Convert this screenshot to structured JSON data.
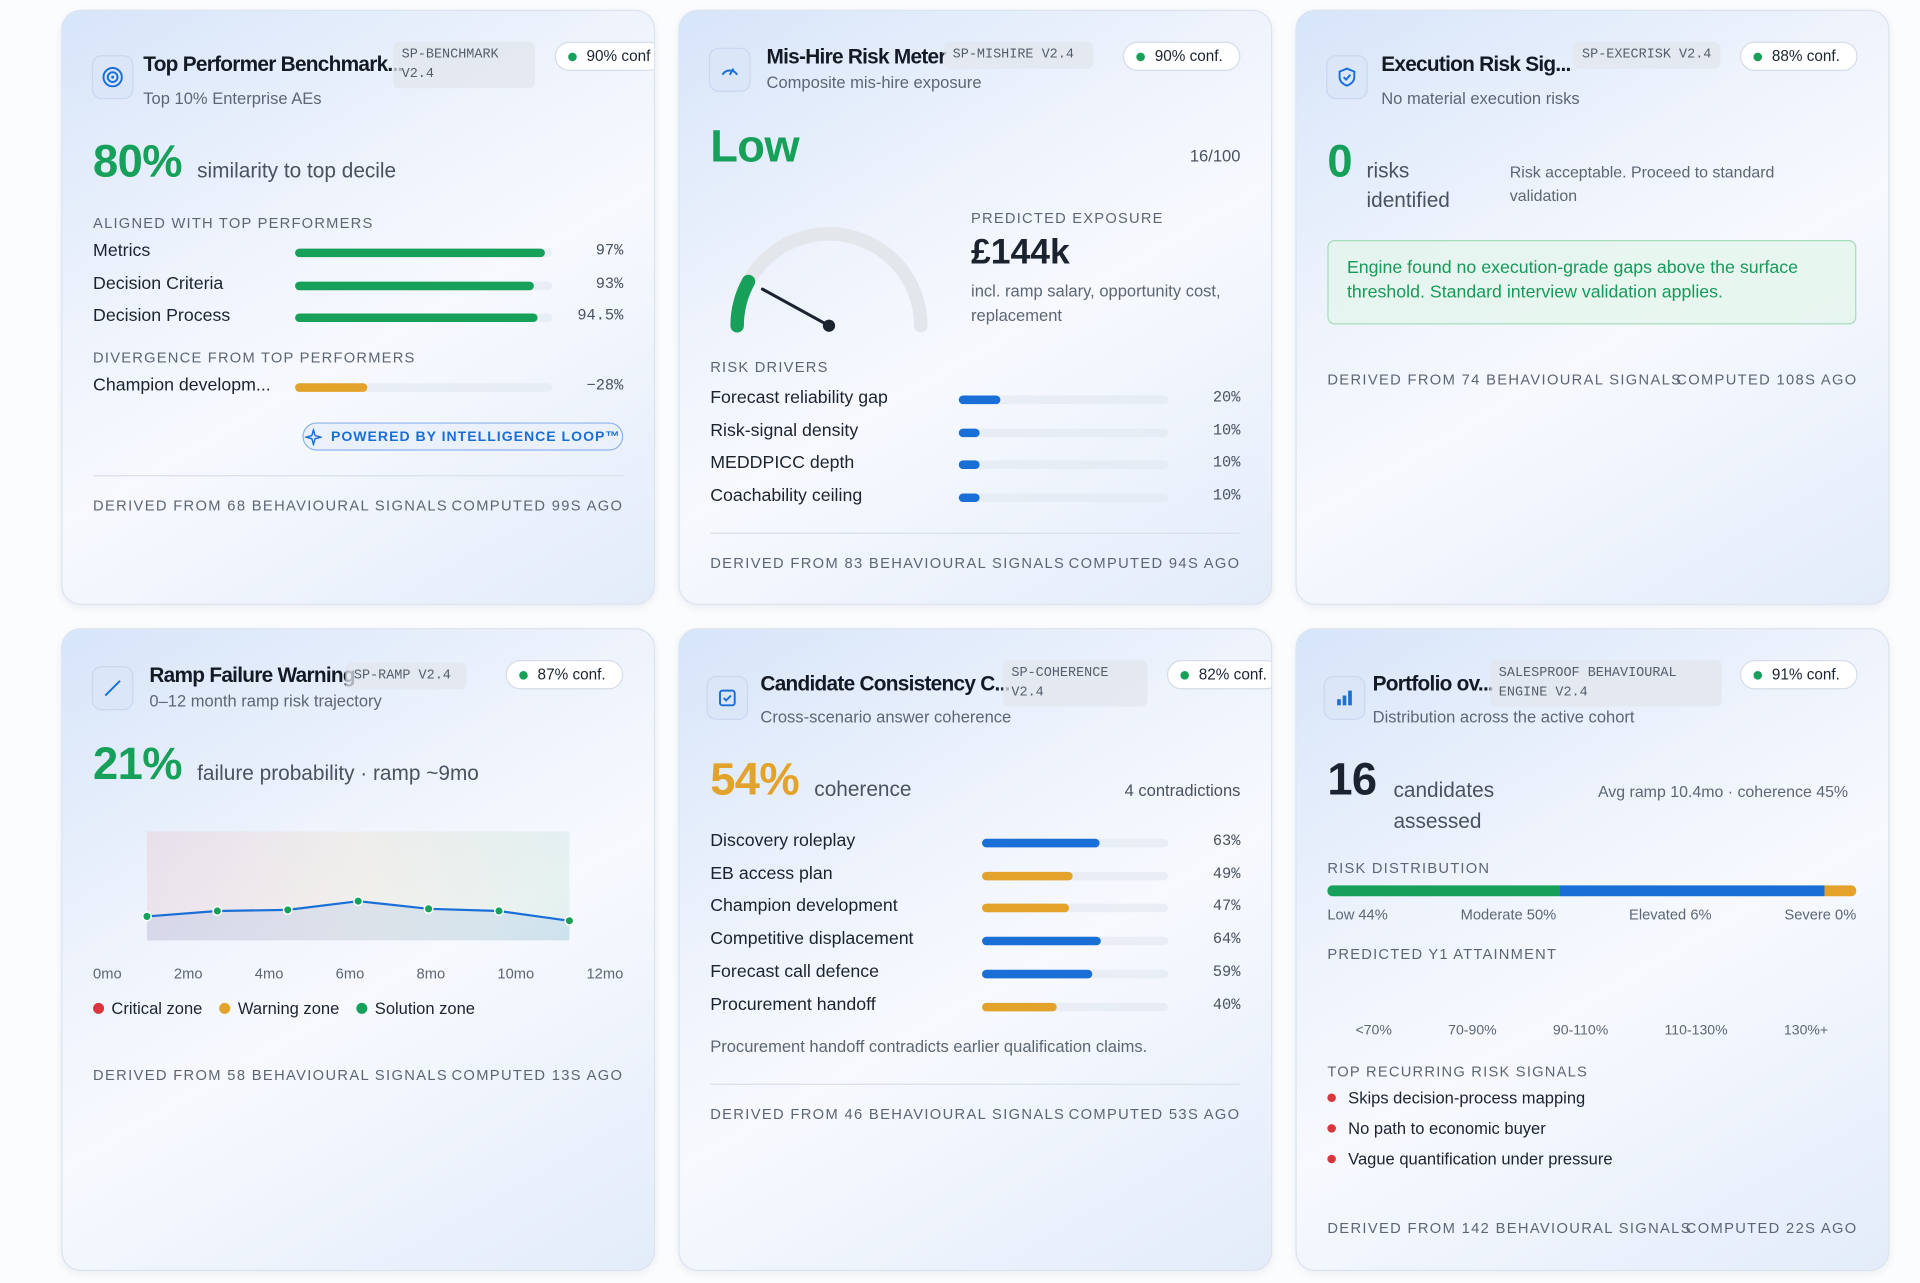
{
  "benchmark": {
    "title": "Top Performer Benchmark...",
    "code": "SP-BENCHMARK V2.4",
    "confidence": "90% conf",
    "subtitle": "Top 10% Enterprise AEs",
    "headline": "80%",
    "headline_text": "similarity to top decile",
    "aligned_heading": "ALIGNED WITH TOP PERFORMERS",
    "aligned": [
      {
        "label": "Metrics",
        "value": 97,
        "value_label": "97%",
        "color": "#16a05a"
      },
      {
        "label": "Decision Criteria",
        "value": 93,
        "value_label": "93%",
        "color": "#16a05a"
      },
      {
        "label": "Decision Process",
        "value": 94.5,
        "value_label": "94.5%",
        "color": "#16a05a"
      }
    ],
    "divergence_heading": "DIVERGENCE FROM TOP PERFORMERS",
    "divergence": [
      {
        "label": "Champion developm...",
        "value": -28,
        "value_label": "−28%",
        "color": "#e3a22a"
      }
    ],
    "badge": "POWERED BY INTELLIGENCE LOOP™",
    "footer_signals": "DERIVED FROM 68 BEHAVIOURAL SIGNALS",
    "footer_computed": "COMPUTED 99S AGO"
  },
  "mishire": {
    "title": "Mis-Hire Risk Meter",
    "code": "SP-MISHIRE V2.4",
    "confidence": "90% conf.",
    "subtitle": "Composite mis-hire exposure",
    "level": "Low",
    "score": 16,
    "score_label": "16/100",
    "exposure_heading": "PREDICTED EXPOSURE",
    "exposure": "£144k",
    "exposure_note": "incl. ramp salary, opportunity cost, replacement",
    "drivers_heading": "RISK DRIVERS",
    "drivers": [
      {
        "label": "Forecast reliability gap",
        "value": 20,
        "value_label": "20%",
        "color": "#1a6fd6"
      },
      {
        "label": "Risk-signal density",
        "value": 10,
        "value_label": "10%",
        "color": "#1a6fd6"
      },
      {
        "label": "MEDDPICC depth",
        "value": 10,
        "value_label": "10%",
        "color": "#1a6fd6"
      },
      {
        "label": "Coachability ceiling",
        "value": 10,
        "value_label": "10%",
        "color": "#1a6fd6"
      }
    ],
    "footer_signals": "DERIVED FROM 83 BEHAVIOURAL SIGNALS",
    "footer_computed": "COMPUTED 94S AGO"
  },
  "execution": {
    "title": "Execution Risk Sig...",
    "code": "SP-EXECRISK V2.4",
    "confidence": "88% conf.",
    "subtitle": "No material execution risks",
    "headline": "0",
    "headline_text": "risks identified",
    "verdict": "Risk acceptable. Proceed to standard validation",
    "notice": "Engine found no execution-grade gaps above the surface threshold. Standard interview validation applies.",
    "footer_signals": "DERIVED FROM 74 BEHAVIOURAL SIGNALS",
    "footer_computed": "COMPUTED 108S AGO"
  },
  "ramp": {
    "title": "Ramp Failure Warning",
    "code": "SP-RAMP V2.4",
    "confidence": "87% conf.",
    "subtitle": "0–12 month ramp risk trajectory",
    "headline": "21%",
    "headline_text": "failure probability · ramp ~9mo",
    "chart_data": {
      "type": "line",
      "x": [
        0,
        2,
        4,
        6,
        8,
        10,
        12
      ],
      "values": [
        22,
        27,
        28,
        36,
        29,
        27,
        18
      ],
      "color": "#1a6fd6",
      "xlim": [
        0,
        12
      ],
      "ylim": [
        0,
        100
      ],
      "xticks": [
        {
          "value": 0,
          "label": "0mo"
        },
        {
          "value": 2,
          "label": "2mo"
        },
        {
          "value": 4,
          "label": "4mo"
        },
        {
          "value": 6,
          "label": "6mo"
        },
        {
          "value": 8,
          "label": "8mo"
        },
        {
          "value": 10,
          "label": "10mo"
        },
        {
          "value": 12,
          "label": "12mo"
        }
      ],
      "legend": [
        {
          "name": "Critical zone",
          "color": "#d9363e"
        },
        {
          "name": "Warning zone",
          "color": "#e3a22a"
        },
        {
          "name": "Solution zone",
          "color": "#16a05a"
        }
      ]
    },
    "footer_signals": "DERIVED FROM 58 BEHAVIOURAL SIGNALS",
    "footer_computed": "COMPUTED 13S AGO"
  },
  "consistency": {
    "title": "Candidate Consistency C...",
    "code": "SP-COHERENCE V2.4",
    "confidence": "82% conf.",
    "subtitle": "Cross-scenario answer coherence",
    "headline": "54%",
    "headline_text": "coherence",
    "contradictions": "4 contradictions",
    "rows": [
      {
        "label": "Discovery roleplay",
        "value": 63,
        "value_label": "63%",
        "color": "#1a6fd6"
      },
      {
        "label": "EB access plan",
        "value": 49,
        "value_label": "49%",
        "color": "#e3a22a"
      },
      {
        "label": "Champion development",
        "value": 47,
        "value_label": "47%",
        "color": "#e3a22a"
      },
      {
        "label": "Competitive displacement",
        "value": 64,
        "value_label": "64%",
        "color": "#1a6fd6"
      },
      {
        "label": "Forecast call defence",
        "value": 59,
        "value_label": "59%",
        "color": "#1a6fd6"
      },
      {
        "label": "Procurement handoff",
        "value": 40,
        "value_label": "40%",
        "color": "#e3a22a"
      }
    ],
    "note": "Procurement handoff contradicts earlier qualification claims.",
    "footer_signals": "DERIVED FROM 46 BEHAVIOURAL SIGNALS",
    "footer_computed": "COMPUTED 53S AGO"
  },
  "portfolio": {
    "title": "Portfolio ov...",
    "code": "SALESPROOF BEHAVIOURAL ENGINE V2.4",
    "confidence": "91% conf.",
    "subtitle": "Distribution across the active cohort",
    "headline": "16",
    "headline_text": "candidates assessed",
    "summary": "Avg ramp 10.4mo · coherence 45%",
    "distribution_heading": "RISK DISTRIBUTION",
    "distribution": [
      {
        "label": "Low 44%",
        "value": 44,
        "color": "#16a05a"
      },
      {
        "label": "Moderate 50%",
        "value": 50,
        "color": "#1a6fd6"
      },
      {
        "label": "Elevated 6%",
        "value": 6,
        "color": "#e3a22a"
      },
      {
        "label": "Severe 0%",
        "value": 0,
        "color": "#d9363e"
      }
    ],
    "attainment_heading": "PREDICTED Y1 ATTAINMENT",
    "attainment_bands": [
      "<70%",
      "70-90%",
      "90-110%",
      "110-130%",
      "130%+"
    ],
    "signals_heading": "TOP RECURRING RISK SIGNALS",
    "signals": [
      "Skips decision-process mapping",
      "No path to economic buyer",
      "Vague quantification under pressure"
    ],
    "footer_signals": "DERIVED FROM 142 BEHAVIOURAL SIGNALS",
    "footer_computed": "COMPUTED 22S AGO"
  }
}
